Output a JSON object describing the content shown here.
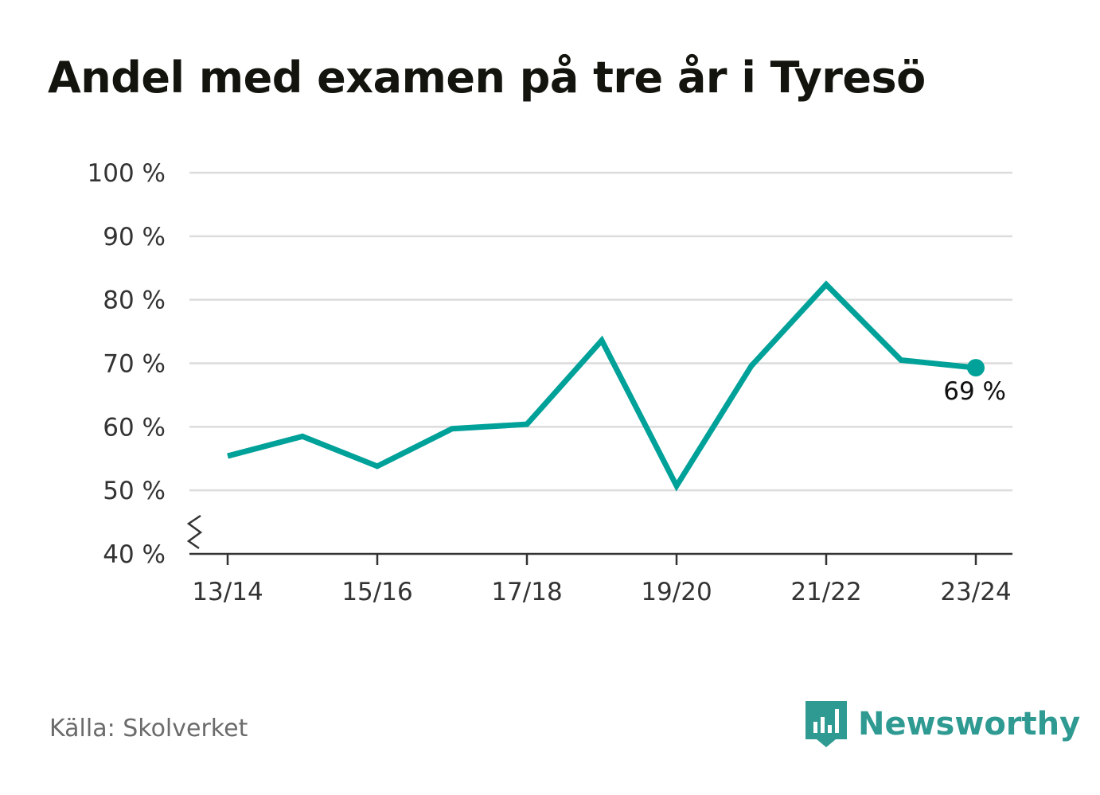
{
  "title": "Andel med examen på tre år i Tyresö",
  "source": "Källa: Skolverket",
  "brand": {
    "name": "Newsworthy",
    "icon": "newsworthy-logo-icon",
    "color": "#2f9a92"
  },
  "colors": {
    "line": "#00a199",
    "grid": "#dcdcdc",
    "axis": "#333333",
    "tick_text": "#333333"
  },
  "chart_data": {
    "type": "line",
    "title": "Andel med examen på tre år i Tyresö",
    "xlabel": "",
    "ylabel": "",
    "x": [
      "13/14",
      "14/15",
      "15/16",
      "16/17",
      "17/18",
      "18/19",
      "19/20",
      "20/21",
      "21/22",
      "22/23",
      "23/24"
    ],
    "x_tick_labels": [
      "13/14",
      "15/16",
      "17/18",
      "19/20",
      "21/22",
      "23/24"
    ],
    "series": [
      {
        "values": [
          55.4,
          58.5,
          53.8,
          59.7,
          60.4,
          73.6,
          50.7,
          69.6,
          82.4,
          70.5,
          69.3
        ]
      }
    ],
    "ylim": [
      40,
      100
    ],
    "y_ticks": [
      40,
      50,
      60,
      70,
      80,
      90,
      100
    ],
    "y_tick_labels": [
      "40 %",
      "50 %",
      "60 %",
      "70 %",
      "80 %",
      "90 %",
      "100 %"
    ],
    "axis_break": true,
    "grid": true,
    "legend": "none",
    "end_label": "69 %"
  }
}
